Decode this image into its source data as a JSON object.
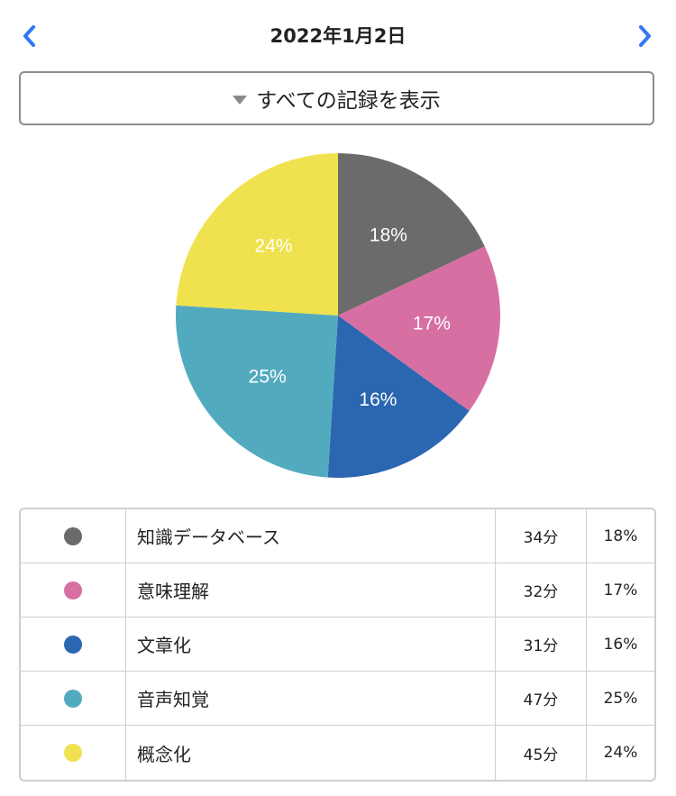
{
  "header": {
    "date": "2022年1月2日",
    "prev_icon": "chevron-left-icon",
    "next_icon": "chevron-right-icon",
    "accent_color": "#3478f6"
  },
  "filter": {
    "label": "すべての記録を表示",
    "icon": "triangle-down-icon"
  },
  "chart_data": {
    "type": "pie",
    "categories": [
      "知識データベース",
      "意味理解",
      "文章化",
      "音声知覚",
      "概念化"
    ],
    "values": [
      18,
      17,
      16,
      25,
      24
    ],
    "labels": [
      "18%",
      "17%",
      "16%",
      "25%",
      "24%"
    ],
    "colors": [
      "#6b6b6b",
      "#d86fa3",
      "#2b66b1",
      "#52aabf",
      "#f0e24e"
    ],
    "start": "12 o'clock",
    "direction": "clockwise"
  },
  "legend": {
    "rows": [
      {
        "name": "知識データベース",
        "minutes": "34分",
        "percent": "18%",
        "color": "#6b6b6b"
      },
      {
        "name": "意味理解",
        "minutes": "32分",
        "percent": "17%",
        "color": "#d86fa3"
      },
      {
        "name": "文章化",
        "minutes": "31分",
        "percent": "16%",
        "color": "#2b66b1"
      },
      {
        "name": "音声知覚",
        "minutes": "47分",
        "percent": "25%",
        "color": "#52aabf"
      },
      {
        "name": "概念化",
        "minutes": "45分",
        "percent": "24%",
        "color": "#f0e24e"
      }
    ]
  }
}
